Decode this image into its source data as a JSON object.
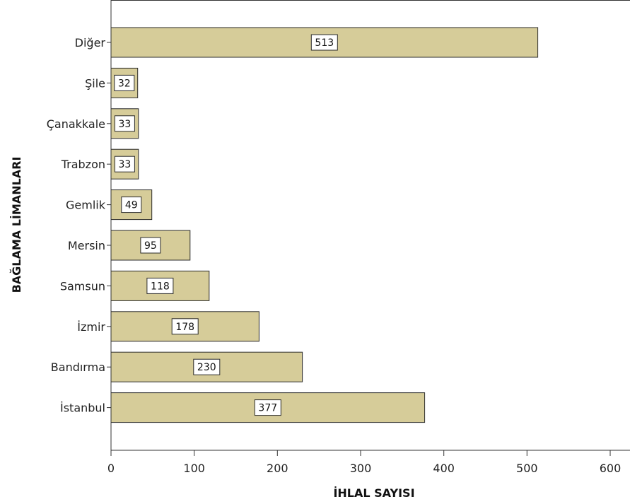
{
  "chart_data": {
    "type": "bar",
    "orientation": "horizontal",
    "categories": [
      "Diğer",
      "Şile",
      "Çanakkale",
      "Trabzon",
      "Gemlik",
      "Mersin",
      "Samsun",
      "İzmir",
      "Bandırma",
      "İstanbul"
    ],
    "values": [
      513,
      32,
      33,
      33,
      49,
      95,
      118,
      178,
      230,
      377
    ],
    "data_labels": [
      "513",
      "32",
      "33",
      "33",
      "49",
      "95",
      "118",
      "178",
      "230",
      "377"
    ],
    "xlabel": "İHLAL SAYISI",
    "ylabel": "BAĞLAMA LİMANLARI",
    "xlim": [
      0,
      600
    ],
    "x_ticks": [
      0,
      100,
      200,
      300,
      400,
      500,
      600
    ],
    "x_tick_labels": [
      "0",
      "100",
      "200",
      "300",
      "400",
      "500",
      "600"
    ],
    "grid": false,
    "colors": {
      "bar_fill": "#d6cc99",
      "bar_stroke": "#2b2b2b",
      "axis": "#333333",
      "label_box_fill": "#ffffff"
    }
  }
}
